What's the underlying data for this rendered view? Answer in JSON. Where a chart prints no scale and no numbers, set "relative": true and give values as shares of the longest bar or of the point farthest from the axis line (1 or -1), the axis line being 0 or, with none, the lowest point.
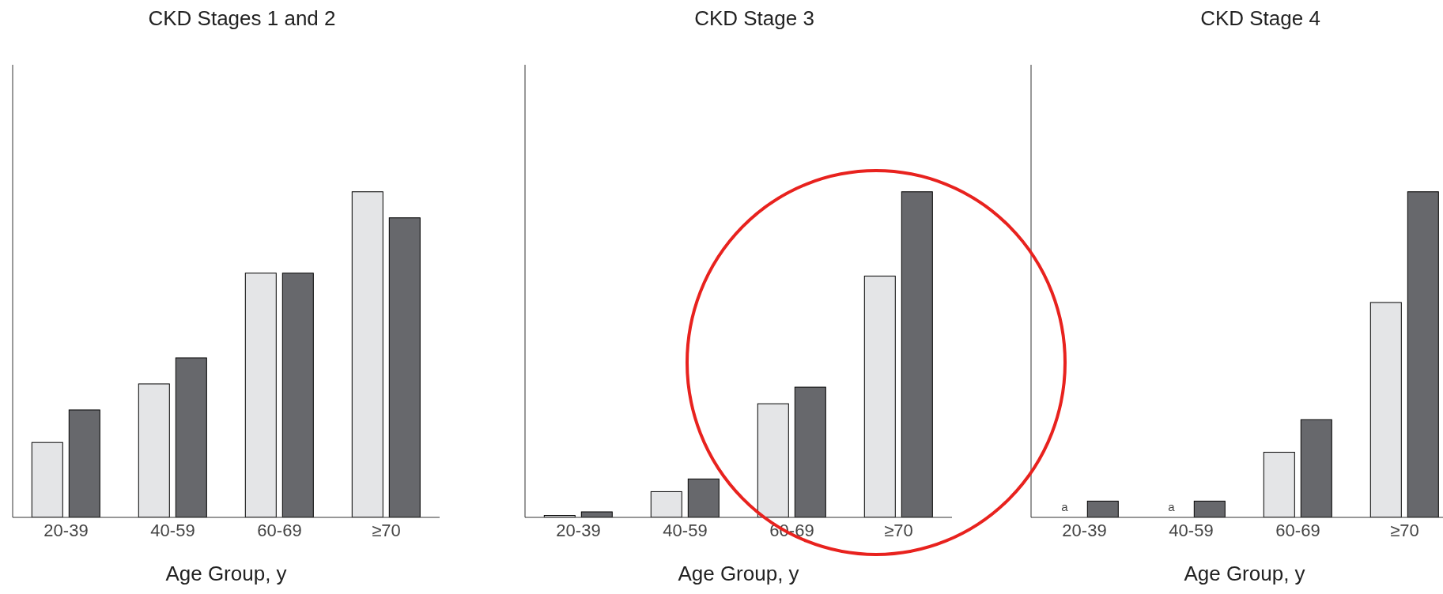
{
  "chart_data": [
    {
      "type": "bar",
      "title": "CKD Stages 1 and 2",
      "xlabel": "Age Group, y",
      "categories": [
        "20-39",
        "40-59",
        "60-69",
        "≥70"
      ],
      "relative": true,
      "series": [
        {
          "color": "#e4e5e7",
          "values": [
            0.23,
            0.41,
            0.75,
            1
          ]
        },
        {
          "color": "#67686c",
          "values": [
            0.33,
            0.49,
            0.75,
            0.92
          ]
        }
      ],
      "grid": false,
      "legend": false
    },
    {
      "type": "bar",
      "title": "CKD Stage 3",
      "xlabel": "Age Group, y",
      "categories": [
        "20-39",
        "40-59",
        "60-69",
        "≥70"
      ],
      "relative": true,
      "series": [
        {
          "color": "#e4e5e7",
          "values": [
            0.006,
            0.079,
            0.349,
            0.741
          ]
        },
        {
          "color": "#67686c",
          "values": [
            0.017,
            0.118,
            0.4,
            1
          ]
        }
      ],
      "grid": false,
      "legend": false
    },
    {
      "type": "bar",
      "title": "CKD Stage 4",
      "xlabel": "Age Group, y",
      "categories": [
        "20-39",
        "40-59",
        "60-69",
        "≥70"
      ],
      "relative": true,
      "series": [
        {
          "color": "#e4e5e7",
          "values": [
            null,
            null,
            0.2,
            0.66
          ]
        },
        {
          "color": "#67686c",
          "values": [
            0.05,
            0.05,
            0.3,
            1
          ]
        }
      ],
      "grid": false,
      "legend": false,
      "annotations": [
        {
          "text": "a",
          "x": "20-39"
        },
        {
          "text": "a",
          "x": "40-59"
        }
      ]
    }
  ]
}
